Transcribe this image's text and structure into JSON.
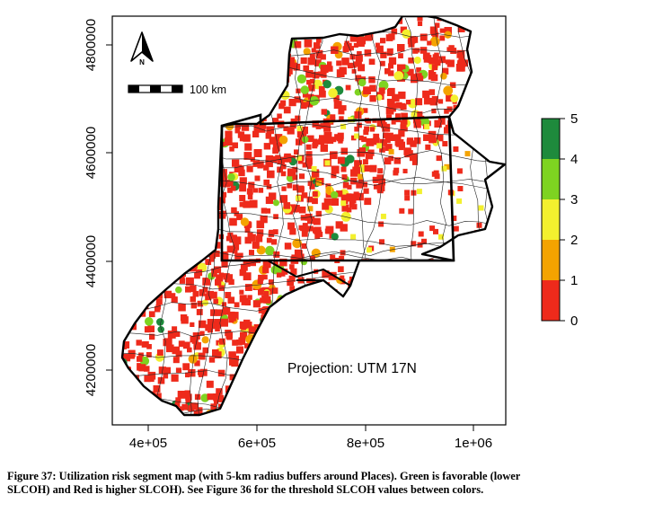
{
  "map": {
    "x_ticks": [
      "4e+05",
      "6e+05",
      "8e+05",
      "1e+06"
    ],
    "y_ticks": [
      "4200000",
      "4400000",
      "4600000",
      "4800000"
    ],
    "north_label": "N",
    "scale_bar_label": "100 km",
    "projection_text": "Projection: UTM 17N"
  },
  "legend": {
    "ticks": [
      "5",
      "4",
      "3",
      "2",
      "1",
      "0"
    ],
    "bins": [
      {
        "from": 4,
        "to": 5,
        "color": "#1E8A3C"
      },
      {
        "from": 3,
        "to": 4,
        "color": "#7ED321"
      },
      {
        "from": 2,
        "to": 3,
        "color": "#F3F02E"
      },
      {
        "from": 1,
        "to": 2,
        "color": "#F4A300"
      },
      {
        "from": 0,
        "to": 1,
        "color": "#EE2A1B"
      }
    ]
  },
  "caption": {
    "line1": "Figure 37: Utilization risk segment map (with 5-km radius buffers around Places). Green is favorable (lower",
    "line2": "SLCOH) and Red is higher SLCOH).  See Figure 36 for the threshold SLCOH values between colors."
  }
}
